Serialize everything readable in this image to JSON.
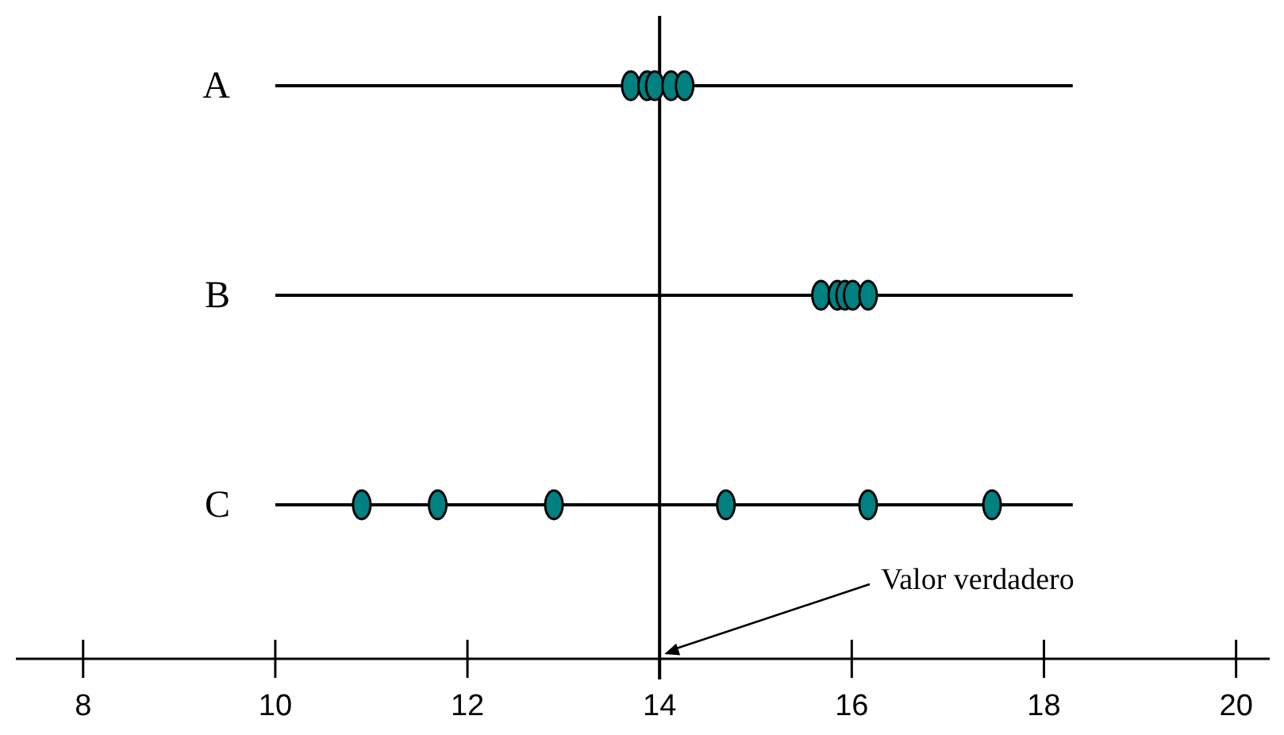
{
  "chart_data": {
    "type": "scatter",
    "orientation": "horizontal",
    "categories": [
      "A",
      "B",
      "C"
    ],
    "xlim": [
      7.3,
      20.35
    ],
    "xticks": [
      8,
      10,
      12,
      14,
      16,
      18,
      20
    ],
    "grid": false,
    "marker": "circle",
    "series": [
      {
        "type": "bar",
        "color": "#000000",
        "values": [
          8.3,
          8.3,
          8.3
        ],
        "base": [
          10,
          10,
          10
        ]
      },
      {
        "color": "#008080",
        "x": [
          "A",
          "A",
          "A",
          "A",
          "A"
        ],
        "values": [
          13.7,
          13.87,
          13.95,
          14.12,
          14.26
        ]
      },
      {
        "color": "#008080",
        "x": [
          "B",
          "B",
          "B",
          "B",
          "B"
        ],
        "values": [
          15.68,
          15.85,
          15.93,
          16.01,
          16.17
        ]
      },
      {
        "color": "#008080",
        "x": [
          "C",
          "C",
          "C",
          "C",
          "C",
          "C"
        ],
        "values": [
          10.9,
          11.69,
          12.9,
          14.69,
          16.17,
          17.46
        ]
      }
    ],
    "ref_lines": [
      {
        "axis": "x",
        "value": 14,
        "label": "Valor verdadero",
        "color": "#000000"
      }
    ]
  }
}
